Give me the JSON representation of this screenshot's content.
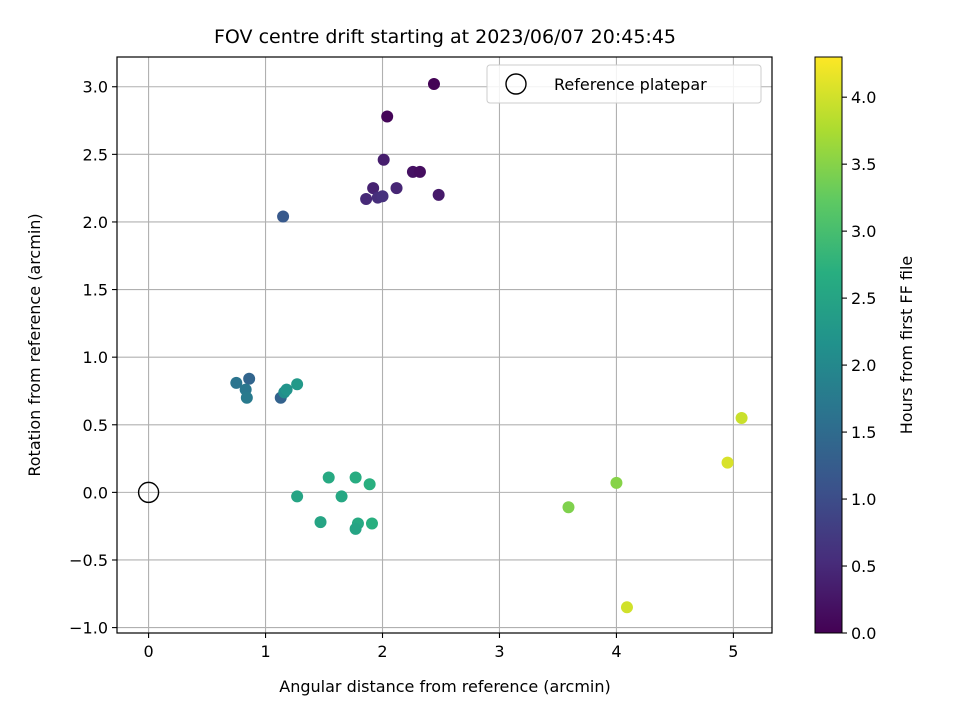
{
  "chart_data": {
    "type": "scatter",
    "title": "FOV centre drift starting at 2023/06/07 20:45:45",
    "xlabel": "Angular distance from reference (arcmin)",
    "ylabel": "Rotation from reference (arcmin)",
    "xlim": [
      -0.27,
      5.33
    ],
    "ylim": [
      -1.04,
      3.22
    ],
    "xticks": [
      0,
      1,
      2,
      3,
      4,
      5
    ],
    "xtick_labels": [
      "0",
      "1",
      "2",
      "3",
      "4",
      "5"
    ],
    "yticks": [
      -1.0,
      -0.5,
      0.0,
      0.5,
      1.0,
      1.5,
      2.0,
      2.5,
      3.0
    ],
    "ytick_labels": [
      "−1.0",
      "−0.5",
      "0.0",
      "0.5",
      "1.0",
      "1.5",
      "2.0",
      "2.5",
      "3.0"
    ],
    "grid": true,
    "legend": {
      "position": "top-right",
      "entries": [
        "Reference platepar"
      ]
    },
    "reference_point": {
      "x": 0,
      "y": 0,
      "label": "Reference platepar"
    },
    "colorbar": {
      "label": "Hours from first FF file",
      "min": 0.0,
      "max": 4.3,
      "ticks": [
        0.0,
        0.5,
        1.0,
        1.5,
        2.0,
        2.5,
        3.0,
        3.5,
        4.0
      ],
      "tick_labels": [
        "0.0",
        "0.5",
        "1.0",
        "1.5",
        "2.0",
        "2.5",
        "3.0",
        "3.5",
        "4.0"
      ],
      "colormap": "viridis"
    },
    "points": [
      {
        "x": 2.44,
        "y": 3.02,
        "c": 0.02
      },
      {
        "x": 2.04,
        "y": 2.78,
        "c": 0.05
      },
      {
        "x": 2.01,
        "y": 2.46,
        "c": 0.35
      },
      {
        "x": 2.26,
        "y": 2.37,
        "c": 0.2
      },
      {
        "x": 2.32,
        "y": 2.37,
        "c": 0.15
      },
      {
        "x": 1.92,
        "y": 2.25,
        "c": 0.4
      },
      {
        "x": 2.12,
        "y": 2.25,
        "c": 0.45
      },
      {
        "x": 1.86,
        "y": 2.17,
        "c": 0.5
      },
      {
        "x": 1.96,
        "y": 2.18,
        "c": 0.55
      },
      {
        "x": 2.0,
        "y": 2.19,
        "c": 0.6
      },
      {
        "x": 2.48,
        "y": 2.2,
        "c": 0.3
      },
      {
        "x": 1.15,
        "y": 2.04,
        "c": 1.2
      },
      {
        "x": 0.75,
        "y": 0.81,
        "c": 1.65
      },
      {
        "x": 0.86,
        "y": 0.84,
        "c": 1.4
      },
      {
        "x": 0.83,
        "y": 0.76,
        "c": 1.7
      },
      {
        "x": 0.84,
        "y": 0.7,
        "c": 1.75
      },
      {
        "x": 1.13,
        "y": 0.7,
        "c": 1.35
      },
      {
        "x": 1.16,
        "y": 0.74,
        "c": 2.1
      },
      {
        "x": 1.18,
        "y": 0.76,
        "c": 2.2
      },
      {
        "x": 1.27,
        "y": 0.8,
        "c": 2.3
      },
      {
        "x": 1.54,
        "y": 0.11,
        "c": 2.6
      },
      {
        "x": 1.77,
        "y": 0.11,
        "c": 2.65
      },
      {
        "x": 1.89,
        "y": 0.06,
        "c": 2.7
      },
      {
        "x": 1.27,
        "y": -0.03,
        "c": 2.5
      },
      {
        "x": 1.65,
        "y": -0.03,
        "c": 2.55
      },
      {
        "x": 1.47,
        "y": -0.22,
        "c": 2.5
      },
      {
        "x": 1.79,
        "y": -0.23,
        "c": 2.6
      },
      {
        "x": 1.91,
        "y": -0.23,
        "c": 2.7
      },
      {
        "x": 1.77,
        "y": -0.27,
        "c": 2.5
      },
      {
        "x": 3.59,
        "y": -0.11,
        "c": 3.45
      },
      {
        "x": 4.0,
        "y": 0.07,
        "c": 3.5
      },
      {
        "x": 4.09,
        "y": -0.85,
        "c": 4.0
      },
      {
        "x": 4.95,
        "y": 0.22,
        "c": 4.05
      },
      {
        "x": 5.07,
        "y": 0.55,
        "c": 3.95
      }
    ]
  }
}
